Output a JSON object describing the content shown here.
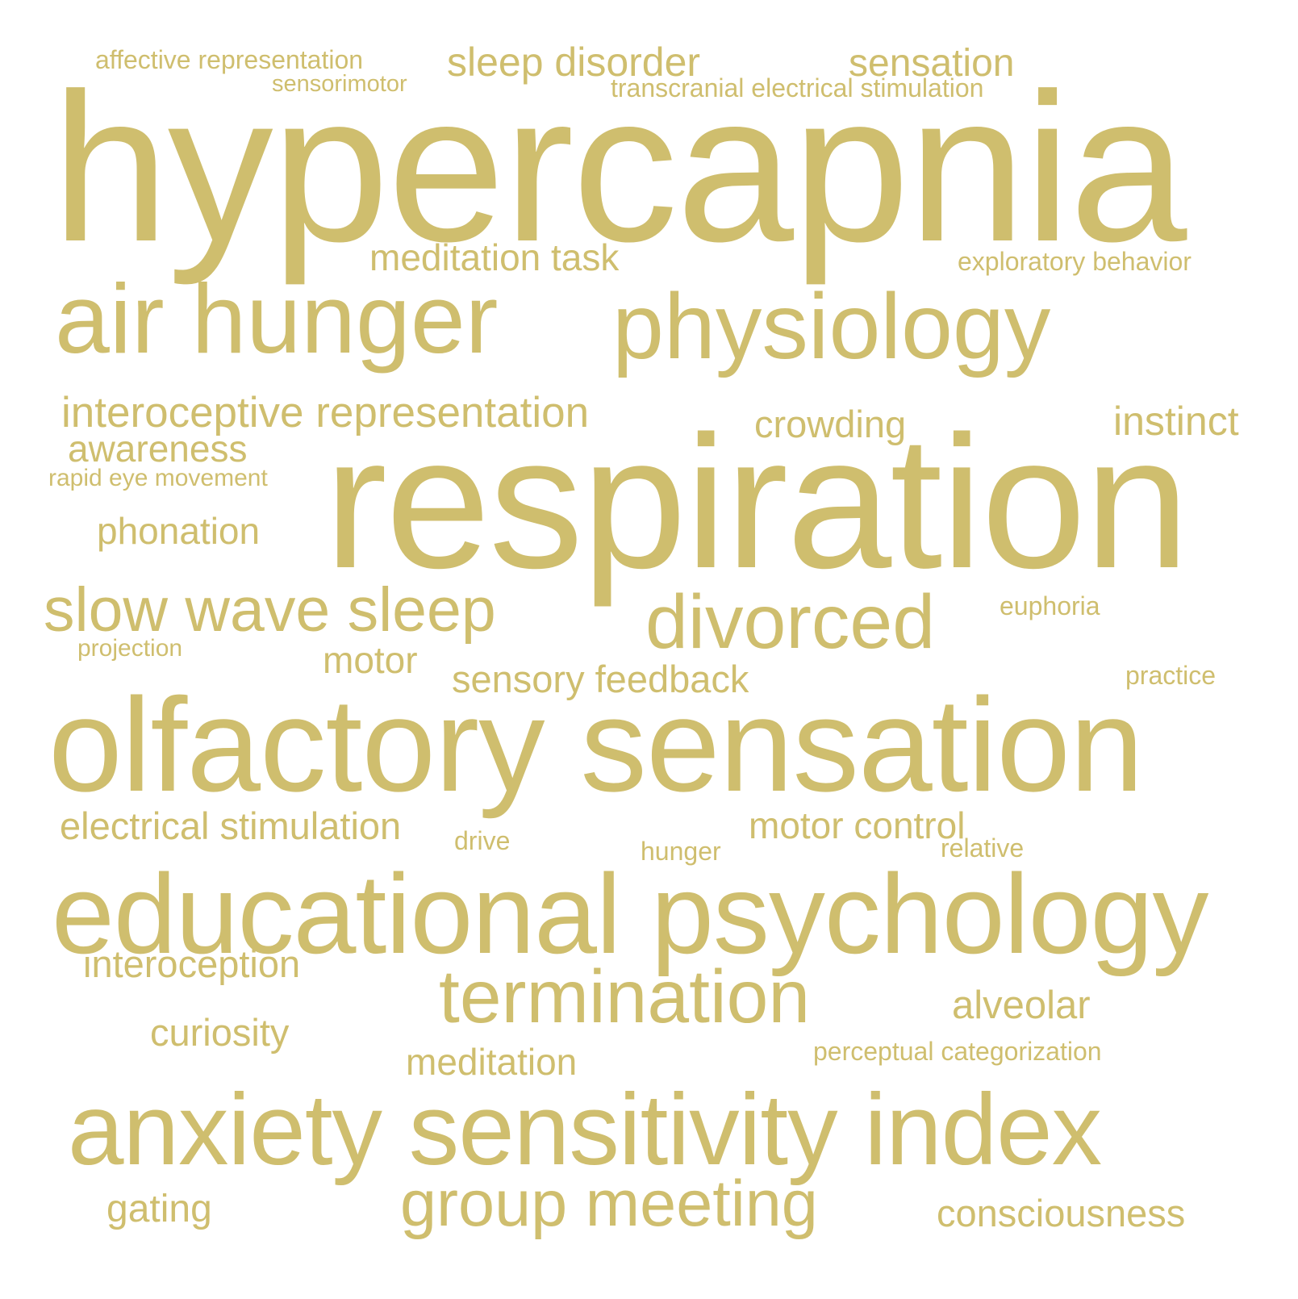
{
  "cloud": {
    "color": "#cfbe6e",
    "background": "#ffffff",
    "words": [
      {
        "id": "affective-representation",
        "text": "affective representation"
      },
      {
        "id": "sensorimotor",
        "text": "sensorimotor"
      },
      {
        "id": "sleep-disorder",
        "text": "sleep disorder"
      },
      {
        "id": "sensation",
        "text": "sensation"
      },
      {
        "id": "transcranial-electrical-stimulation",
        "text": "transcranial electrical stimulation"
      },
      {
        "id": "hypercapnia",
        "text": "hypercapnia"
      },
      {
        "id": "meditation-task",
        "text": "meditation task"
      },
      {
        "id": "exploratory-behavior",
        "text": "exploratory behavior"
      },
      {
        "id": "air-hunger",
        "text": "air hunger"
      },
      {
        "id": "physiology",
        "text": "physiology"
      },
      {
        "id": "interoceptive-representation",
        "text": "interoceptive representation"
      },
      {
        "id": "crowding",
        "text": "crowding"
      },
      {
        "id": "instinct",
        "text": "instinct"
      },
      {
        "id": "awareness",
        "text": "awareness"
      },
      {
        "id": "rapid-eye-movement",
        "text": "rapid eye movement"
      },
      {
        "id": "respiration",
        "text": "respiration"
      },
      {
        "id": "phonation",
        "text": "phonation"
      },
      {
        "id": "slow-wave-sleep",
        "text": "slow wave sleep"
      },
      {
        "id": "divorced",
        "text": "divorced"
      },
      {
        "id": "euphoria",
        "text": "euphoria"
      },
      {
        "id": "projection",
        "text": "projection"
      },
      {
        "id": "motor",
        "text": "motor"
      },
      {
        "id": "sensory-feedback",
        "text": "sensory feedback"
      },
      {
        "id": "practice",
        "text": "practice"
      },
      {
        "id": "olfactory-sensation",
        "text": "olfactory sensation"
      },
      {
        "id": "electrical-stimulation",
        "text": "electrical stimulation"
      },
      {
        "id": "drive",
        "text": "drive"
      },
      {
        "id": "motor-control",
        "text": "motor control"
      },
      {
        "id": "hunger",
        "text": "hunger"
      },
      {
        "id": "relative",
        "text": "relative"
      },
      {
        "id": "educational-psychology",
        "text": "educational psychology"
      },
      {
        "id": "interoception",
        "text": "interoception"
      },
      {
        "id": "termination",
        "text": "termination"
      },
      {
        "id": "alveolar",
        "text": "alveolar"
      },
      {
        "id": "curiosity",
        "text": "curiosity"
      },
      {
        "id": "meditation",
        "text": "meditation"
      },
      {
        "id": "perceptual-categorization",
        "text": "perceptual categorization"
      },
      {
        "id": "anxiety-sensitivity-index",
        "text": "anxiety sensitivity index"
      },
      {
        "id": "group-meeting",
        "text": "group meeting"
      },
      {
        "id": "gating",
        "text": "gating"
      },
      {
        "id": "consciousness",
        "text": "consciousness"
      }
    ]
  }
}
